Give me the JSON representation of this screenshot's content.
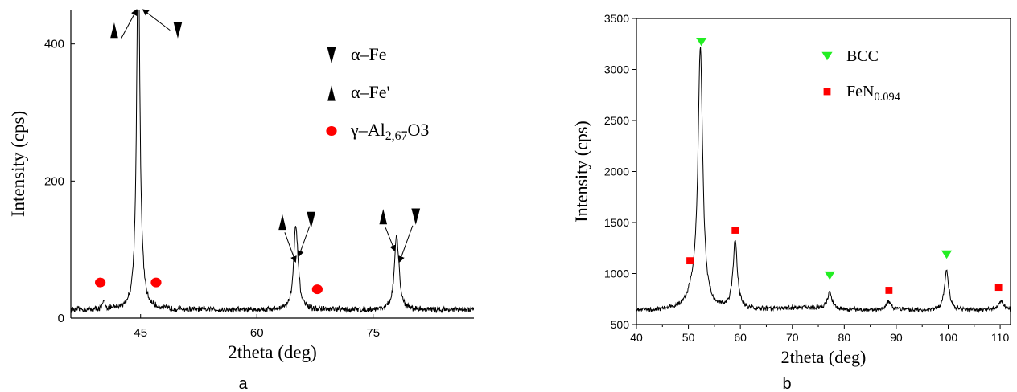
{
  "panel_labels": [
    "a",
    "b"
  ],
  "chart_data": [
    {
      "type": "line",
      "panel": "a",
      "xlabel": "2theta (deg)",
      "ylabel": "Intensity (cps)",
      "xlim": [
        36,
        88
      ],
      "ylim": [
        0,
        450
      ],
      "xticks": [
        45,
        60,
        75
      ],
      "yticks": [
        0,
        200,
        400
      ],
      "grid": false,
      "legend_position": "top-right",
      "legend": [
        {
          "marker": "down-triangle",
          "color": "#000000",
          "label_main": "α–Fe",
          "label_sub": "",
          "label_tail": ""
        },
        {
          "marker": "up-triangle",
          "color": "#000000",
          "label_main": "α–Fe'",
          "label_sub": "",
          "label_tail": ""
        },
        {
          "marker": "circle",
          "color": "#ff0000",
          "label_main": "γ–Al",
          "label_sub": "2,67",
          "label_tail": "O3"
        }
      ],
      "baseline": 12,
      "noise": 3.5,
      "peaks": [
        {
          "x": 40.3,
          "h": 12,
          "w": 0.18
        },
        {
          "x": 44.7,
          "h": 540,
          "w": 0.25
        },
        {
          "x": 45.3,
          "h": 8,
          "w": 0.2
        },
        {
          "x": 65.0,
          "h": 112,
          "w": 0.32
        },
        {
          "x": 65.3,
          "h": 20,
          "w": 0.25
        },
        {
          "x": 78.0,
          "h": 98,
          "w": 0.32
        },
        {
          "x": 78.3,
          "h": 20,
          "w": 0.25
        }
      ],
      "phase_markers": [
        {
          "marker": "circle",
          "color": "#ff0000",
          "x": 39.8,
          "y": 52
        },
        {
          "marker": "circle",
          "color": "#ff0000",
          "x": 47.0,
          "y": 52
        },
        {
          "marker": "circle",
          "color": "#ff0000",
          "x": 67.8,
          "y": 42
        },
        {
          "marker": "up-triangle",
          "color": "#000000",
          "x": 41.6,
          "y": 420
        },
        {
          "marker": "down-triangle",
          "color": "#000000",
          "x": 49.8,
          "y": 420
        },
        {
          "marker": "up-triangle",
          "color": "#000000",
          "x": 63.3,
          "y": 140
        },
        {
          "marker": "down-triangle",
          "color": "#000000",
          "x": 67.0,
          "y": 143
        },
        {
          "marker": "up-triangle",
          "color": "#000000",
          "x": 76.3,
          "y": 148
        },
        {
          "marker": "down-triangle",
          "color": "#000000",
          "x": 80.5,
          "y": 148
        }
      ],
      "arrows": [
        {
          "from": [
            42.5,
            408
          ],
          "to": [
            44.5,
            450
          ]
        },
        {
          "from": [
            48.8,
            420
          ],
          "to": [
            45.3,
            450
          ]
        },
        {
          "from": [
            63.6,
            125
          ],
          "to": [
            65.0,
            82
          ]
        },
        {
          "from": [
            66.8,
            134
          ],
          "to": [
            65.4,
            90
          ]
        },
        {
          "from": [
            76.6,
            132
          ],
          "to": [
            77.8,
            98
          ]
        },
        {
          "from": [
            80.1,
            135
          ],
          "to": [
            78.4,
            82
          ]
        }
      ]
    },
    {
      "type": "line",
      "panel": "b",
      "xlabel": "2theta (deg)",
      "ylabel": "Intensity (cps)",
      "xlim": [
        40,
        112
      ],
      "ylim": [
        500,
        3500
      ],
      "xticks": [
        40,
        50,
        60,
        70,
        80,
        90,
        100,
        110
      ],
      "yticks": [
        500,
        1000,
        1500,
        2000,
        2500,
        3000,
        3500
      ],
      "grid": false,
      "legend_position": "top-center",
      "legend": [
        {
          "marker": "down-triangle",
          "color": "#22ee22",
          "label_main": "BCC",
          "label_sub": "",
          "label_tail": ""
        },
        {
          "marker": "square",
          "color": "#ff0000",
          "label_main": "FeN",
          "label_sub": "0.094",
          "label_tail": ""
        }
      ],
      "baseline": 640,
      "noise": 18,
      "peaks": [
        {
          "x": 52.3,
          "h": 2520,
          "w": 0.55
        },
        {
          "x": 50.8,
          "h": 120,
          "w": 1.2
        },
        {
          "x": 59.0,
          "h": 670,
          "w": 0.5
        },
        {
          "x": 77.2,
          "h": 170,
          "w": 0.5
        },
        {
          "x": 88.5,
          "h": 80,
          "w": 0.6
        },
        {
          "x": 99.7,
          "h": 390,
          "w": 0.5
        },
        {
          "x": 110.2,
          "h": 80,
          "w": 0.7
        }
      ],
      "phase_markers": [
        {
          "marker": "down-triangle",
          "color": "#22ee22",
          "x": 52.5,
          "y": 3270
        },
        {
          "marker": "down-triangle",
          "color": "#22ee22",
          "x": 77.2,
          "y": 980
        },
        {
          "marker": "down-triangle",
          "color": "#22ee22",
          "x": 99.7,
          "y": 1185
        },
        {
          "marker": "square",
          "color": "#ff0000",
          "x": 50.3,
          "y": 1125
        },
        {
          "marker": "square",
          "color": "#ff0000",
          "x": 59.0,
          "y": 1425
        },
        {
          "marker": "square",
          "color": "#ff0000",
          "x": 88.6,
          "y": 835
        },
        {
          "marker": "square",
          "color": "#ff0000",
          "x": 109.7,
          "y": 865
        }
      ],
      "arrows": []
    }
  ]
}
